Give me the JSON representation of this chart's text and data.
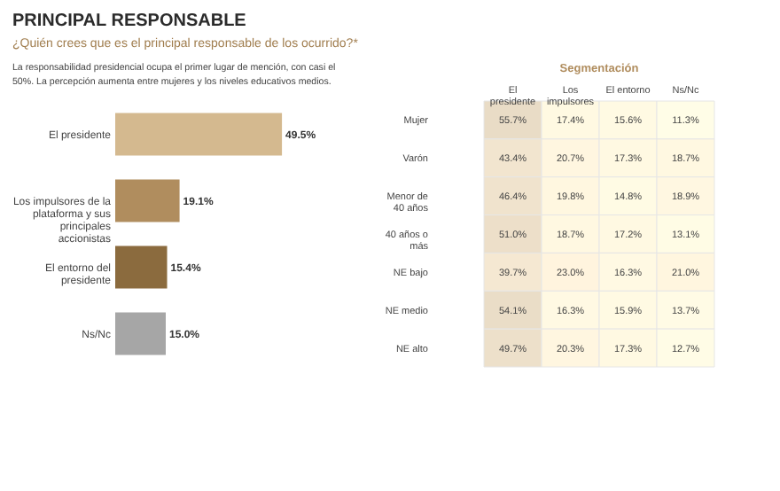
{
  "chart_data": [
    {
      "type": "bar",
      "title": "PRINCIPAL RESPONSABLE",
      "subtitle": "¿Quién crees que es el principal responsable de los ocurrido?*",
      "annotations": [
        "La responsabilidad presidencial ocupa el primer lugar de mención, con casi el 50%.  La percepción aumenta entre mujeres y los niveles educativos medios."
      ],
      "orientation": "horizontal",
      "categories": [
        "El presidente",
        "Los impulsores de la plataforma y sus principales accionistas",
        "El entorno del presidente",
        "Ns/Nc"
      ],
      "values": [
        49.5,
        19.1,
        15.4,
        15.0
      ],
      "colors": [
        "#d4b98f",
        "#b08d5e",
        "#8b6b3e",
        "#a6a6a6"
      ],
      "value_labels": [
        "49.5%",
        "19.1%",
        "15.4%",
        "15.0%"
      ]
    },
    {
      "type": "heatmap",
      "title": "Segmentación",
      "categories": [
        "El presidente",
        "Los impulsores",
        "El entorno",
        "Ns/Nc"
      ],
      "y_categories": [
        "Mujer",
        "Varón",
        "Menor de 40 años",
        "40 años o más",
        "NE bajo",
        "NE medio",
        "NE alto"
      ],
      "cells": [
        [
          55.7,
          17.4,
          15.6,
          11.3
        ],
        [
          43.4,
          20.7,
          17.3,
          18.7
        ],
        [
          46.4,
          19.8,
          14.8,
          18.9
        ],
        [
          51.0,
          18.7,
          17.2,
          13.1
        ],
        [
          39.7,
          23.0,
          16.3,
          21.0
        ],
        [
          54.1,
          16.3,
          15.9,
          13.7
        ],
        [
          49.7,
          20.3,
          17.3,
          12.7
        ]
      ],
      "cell_labels": [
        [
          "55.7%",
          "17.4%",
          "15.6%",
          "11.3%"
        ],
        [
          "43.4%",
          "20.7%",
          "17.3%",
          "18.7%"
        ],
        [
          "46.4%",
          "19.8%",
          "14.8%",
          "18.9%"
        ],
        [
          "51.0%",
          "18.7%",
          "17.2%",
          "13.1%"
        ],
        [
          "39.7%",
          "23.0%",
          "16.3%",
          "21.0%"
        ],
        [
          "54.1%",
          "16.3%",
          "15.9%",
          "13.7%"
        ],
        [
          "49.7%",
          "20.3%",
          "17.3%",
          "12.7%"
        ]
      ]
    }
  ]
}
